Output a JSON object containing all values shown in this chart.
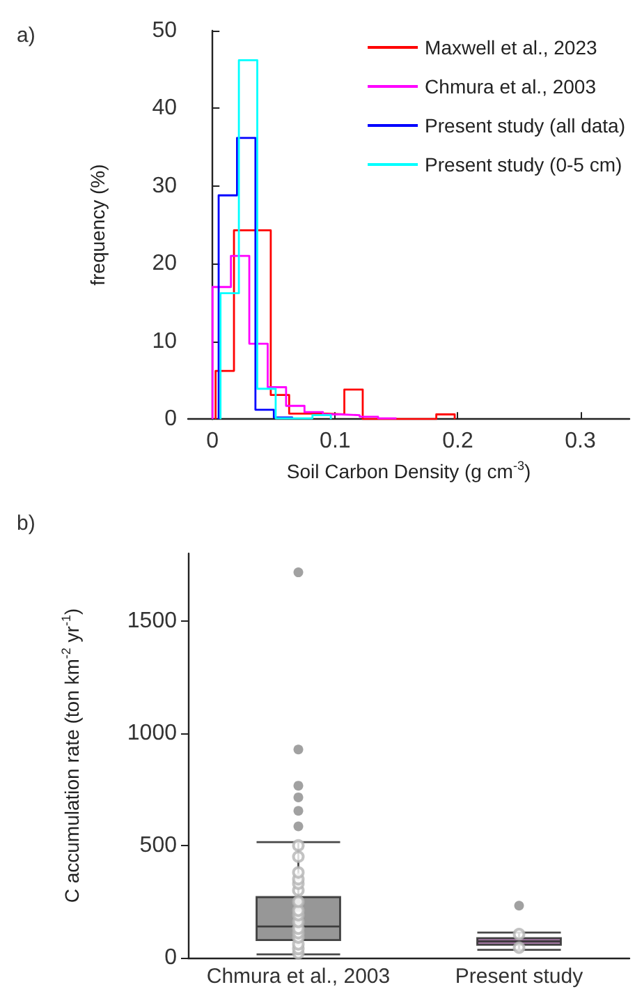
{
  "chart_data": [
    {
      "type": "step",
      "xlabel": "Soil Carbon Density (g cm$^{-3}$)",
      "ylabel": "frequency (%)",
      "annotations": [
        "a)"
      ],
      "xlim": [
        -0.02,
        0.34
      ],
      "xticks": [
        0,
        0.1,
        0.2,
        0.3
      ],
      "ylim": [
        0,
        50
      ],
      "yticks": [
        0,
        10,
        20,
        30,
        40,
        50
      ],
      "grid": false,
      "legend": "top right",
      "series": [
        {
          "name": "Maxwell et al., 2023",
          "color": "#ff0000",
          "x": [
            0.0025,
            0.0025,
            0.0175,
            0.0325,
            0.0475,
            0.0625,
            0.0775,
            0.0925,
            0.1075,
            0.1225,
            0.1375,
            0.1525,
            0.1675,
            0.1825,
            0.1975
          ],
          "values": [
            0,
            6.2,
            24.3,
            24.3,
            3.1,
            0.7,
            0.7,
            0.6,
            3.8,
            0,
            0,
            0,
            0,
            0.6,
            0
          ]
        },
        {
          "name": "Chmura et al., 2003",
          "color": "#ff00ff",
          "x": [
            0,
            0,
            0.015,
            0.03,
            0.045,
            0.06,
            0.075,
            0.09,
            0.105,
            0.12,
            0.135,
            0.15
          ],
          "values": [
            0,
            17,
            21,
            9.7,
            4.1,
            1.7,
            0.9,
            0.6,
            0.5,
            0.3,
            0.1,
            0
          ]
        },
        {
          "name": "Present study (all data)",
          "color": "#0000ff",
          "x": [
            0.005,
            0.005,
            0.02,
            0.035,
            0.05,
            0.065
          ],
          "values": [
            0,
            28.8,
            36.2,
            1.2,
            0.2,
            0
          ]
        },
        {
          "name": "Present study (0-5 cm)",
          "color": "#00ffff",
          "x": [
            0.0065,
            0.0065,
            0.0215,
            0.0365,
            0.0515,
            0.0665,
            0.0815,
            0.0965
          ],
          "values": [
            0,
            16.2,
            46.2,
            3.9,
            0.1,
            0.1,
            0.5,
            0
          ]
        }
      ]
    },
    {
      "type": "box",
      "ylabel": "C accumulation rate (ton km$^{-2}$ yr$^{-1}$)",
      "annotations": [
        "b)"
      ],
      "categories": [
        "Chmura et al., 2003",
        "Present study"
      ],
      "ylim": [
        0,
        1800
      ],
      "yticks": [
        0,
        500,
        1000,
        1500
      ],
      "grid": false,
      "colors": [
        "#8c8c8c",
        "#9a6a9a"
      ],
      "boxes": [
        {
          "low": 15,
          "q1": 79,
          "median": 139,
          "q3": 270,
          "high": 515,
          "outliers": [
            585,
            654,
            714,
            766,
            927,
            1716
          ]
        },
        {
          "low": 35,
          "q1": 58,
          "median": 73,
          "q3": 87,
          "high": 112,
          "outliers": [
            232
          ]
        }
      ],
      "series": [
        {
          "type": "scatter",
          "color": "#b4b4b4",
          "x": [
            "Chmura et al., 2003",
            "Chmura et al., 2003",
            "Chmura et al., 2003",
            "Chmura et al., 2003",
            "Chmura et al., 2003",
            "Chmura et al., 2003",
            "Chmura et al., 2003",
            "Chmura et al., 2003",
            "Chmura et al., 2003",
            "Chmura et al., 2003",
            "Chmura et al., 2003",
            "Chmura et al., 2003",
            "Chmura et al., 2003",
            "Chmura et al., 2003",
            "Chmura et al., 2003",
            "Chmura et al., 2003",
            "Present study",
            "Present study"
          ],
          "values": [
            20,
            40,
            60,
            90,
            110,
            130,
            160,
            190,
            210,
            250,
            300,
            330,
            350,
            380,
            450,
            500,
            45,
            105
          ]
        }
      ]
    }
  ]
}
